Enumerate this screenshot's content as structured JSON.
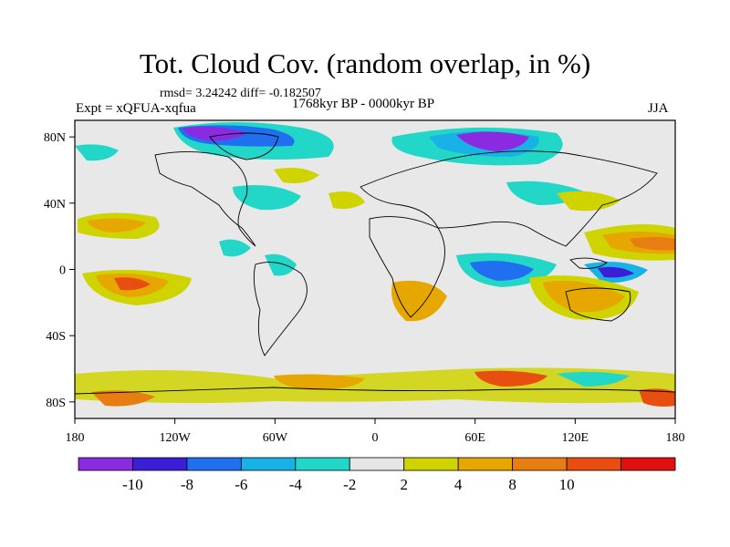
{
  "title": "Tot. Cloud Cov. (random overlap, in %)",
  "stats": "rmsd= 3.24242 diff= -0.182507",
  "experiment": "Expt = xQFUA-xqfua",
  "period": "1768kyr BP - 0000kyr BP",
  "season": "JJA",
  "map": {
    "lat_ticks": [
      "80N",
      "40N",
      "0",
      "40S",
      "80S"
    ],
    "lat_values": [
      80,
      40,
      0,
      -40,
      -80
    ],
    "lon_ticks": [
      "180",
      "120W",
      "60W",
      "0",
      "60E",
      "120E",
      "180"
    ],
    "lon_values": [
      -180,
      -120,
      -60,
      0,
      60,
      120,
      180
    ],
    "extent": {
      "lon": [
        -180,
        180
      ],
      "lat": [
        -90,
        90
      ]
    }
  },
  "colorbar": {
    "labels": [
      "-10",
      "-8",
      "-6",
      "-4",
      "-2",
      "2",
      "4",
      "8",
      "10"
    ],
    "colors": [
      "#8a2be2",
      "#3b1fd6",
      "#1f6ff0",
      "#19b2e6",
      "#22d7c8",
      "#e6e6e6",
      "#cfd400",
      "#e6a800",
      "#e87d12",
      "#e84e10",
      "#e01010"
    ]
  }
}
